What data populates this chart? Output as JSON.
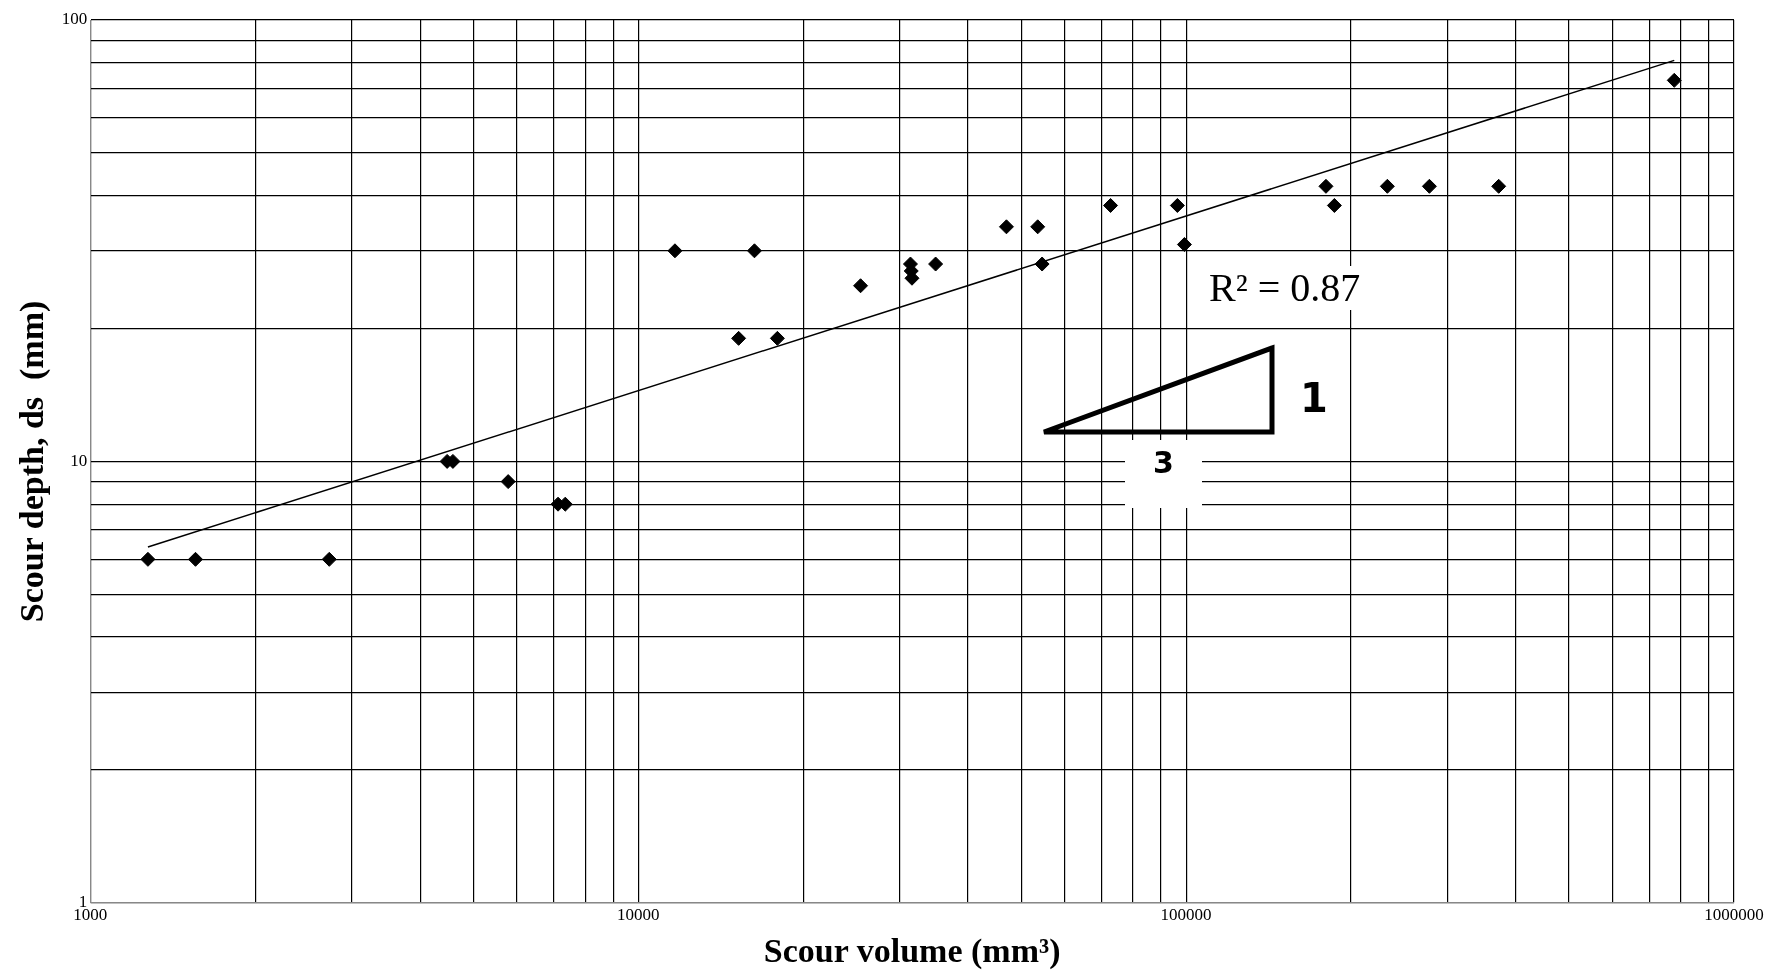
{
  "chart_data": {
    "type": "scatter",
    "xlabel": "Scour volume (mm³)",
    "ylabel": "Scour depth, ds  (mm)",
    "log": "xy",
    "grid": true,
    "legend": false,
    "marker": "diamond",
    "xlim": [
      1000,
      1000000
    ],
    "xticks": [
      1000,
      {
        "value": 2000,
        "label": null
      },
      {
        "value": 3000,
        "label": null
      },
      {
        "value": 4000,
        "label": null
      },
      {
        "value": 5000,
        "label": null
      },
      {
        "value": 6000,
        "label": null
      },
      {
        "value": 7000,
        "label": null
      },
      {
        "value": 8000,
        "label": null
      },
      {
        "value": 9000,
        "label": null
      },
      10000,
      {
        "value": 20000,
        "label": null
      },
      {
        "value": 30000,
        "label": null
      },
      {
        "value": 40000,
        "label": null
      },
      {
        "value": 50000,
        "label": null
      },
      {
        "value": 60000,
        "label": null
      },
      {
        "value": 70000,
        "label": null
      },
      {
        "value": 80000,
        "label": null
      },
      {
        "value": 90000,
        "label": null
      },
      100000,
      {
        "value": 200000,
        "label": null
      },
      {
        "value": 300000,
        "label": null
      },
      {
        "value": 400000,
        "label": null
      },
      {
        "value": 500000,
        "label": null
      },
      {
        "value": 600000,
        "label": null
      },
      {
        "value": 700000,
        "label": null
      },
      {
        "value": 800000,
        "label": null
      },
      {
        "value": 900000,
        "label": null
      },
      1000000
    ],
    "ylim": [
      1,
      100
    ],
    "yticks": [
      1,
      {
        "value": 2,
        "label": null
      },
      {
        "value": 3,
        "label": null
      },
      {
        "value": 4,
        "label": null
      },
      {
        "value": 5,
        "label": null
      },
      {
        "value": 6,
        "label": null
      },
      {
        "value": 7,
        "label": null
      },
      {
        "value": 8,
        "label": null
      },
      {
        "value": 9,
        "label": null
      },
      10,
      {
        "value": 20,
        "label": null
      },
      {
        "value": 30,
        "label": null
      },
      {
        "value": 40,
        "label": null
      },
      {
        "value": 50,
        "label": null
      },
      {
        "value": 60,
        "label": null
      },
      {
        "value": 70,
        "label": null
      },
      {
        "value": 80,
        "label": null
      },
      {
        "value": 90,
        "label": null
      },
      100
    ],
    "series": [
      {
        "color": "#000000",
        "x": [
          1274,
          1556,
          2730,
          4480,
          4590,
          5790,
          7140,
          7360,
          11670,
          15250,
          16300,
          17950,
          25460,
          31400,
          31500,
          31600,
          34900,
          47000,
          53600,
          54600,
          72800,
          96400,
          99300,
          180000,
          186500,
          233000,
          278000,
          372000,
          778000
        ],
        "values": [
          6,
          6,
          6,
          10,
          10,
          9,
          8,
          8,
          30,
          19,
          30,
          19,
          25,
          28,
          27,
          26,
          28,
          34,
          34,
          28,
          38,
          38,
          31,
          42,
          38,
          42,
          42,
          42,
          73
        ]
      },
      {
        "type": "line",
        "color": "#000000",
        "marker": "none",
        "x": [
          1274,
          778000
        ],
        "values": [
          6.4,
          81
        ]
      }
    ],
    "annotations": [
      "R² = 0.87",
      "1",
      "3"
    ]
  }
}
